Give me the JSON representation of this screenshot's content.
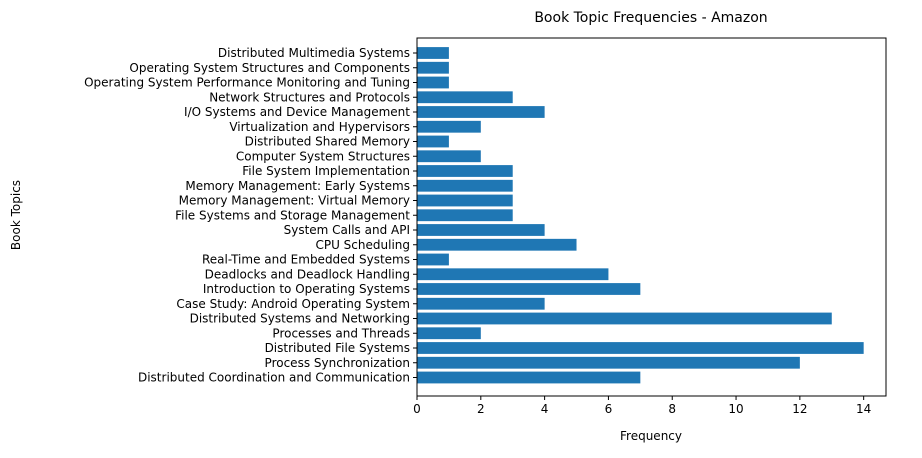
{
  "chart_data": {
    "type": "bar",
    "orientation": "horizontal",
    "title": "Book Topic Frequencies - Amazon",
    "xlabel": "Frequency",
    "ylabel": "Book Topics",
    "xlim": [
      0,
      14.7
    ],
    "xticks": [
      "0",
      "2",
      "4",
      "6",
      "8",
      "10",
      "12",
      "14"
    ],
    "grid": false,
    "bar_color": "#1f77b4",
    "categories": [
      "Distributed Coordination and Communication",
      "Process Synchronization",
      "Distributed File Systems",
      "Processes and Threads",
      "Distributed Systems and Networking",
      "Case Study: Android Operating System",
      "Introduction to Operating Systems",
      "Deadlocks and Deadlock Handling",
      "Real-Time and Embedded Systems",
      "CPU Scheduling",
      "System Calls and API",
      "File Systems and Storage Management",
      "Memory Management: Virtual Memory",
      "Memory Management: Early Systems",
      "File System Implementation",
      "Computer System Structures",
      "Distributed Shared Memory",
      "Virtualization and Hypervisors",
      "I/O Systems and Device Management",
      "Network Structures and Protocols",
      "Operating System Performance Monitoring and Tuning",
      "Operating System Structures and Components",
      "Distributed Multimedia Systems"
    ],
    "values": [
      7,
      12,
      14,
      2,
      13,
      4,
      7,
      6,
      1,
      5,
      4,
      3,
      3,
      3,
      3,
      2,
      1,
      2,
      4,
      3,
      1,
      1,
      1
    ]
  }
}
